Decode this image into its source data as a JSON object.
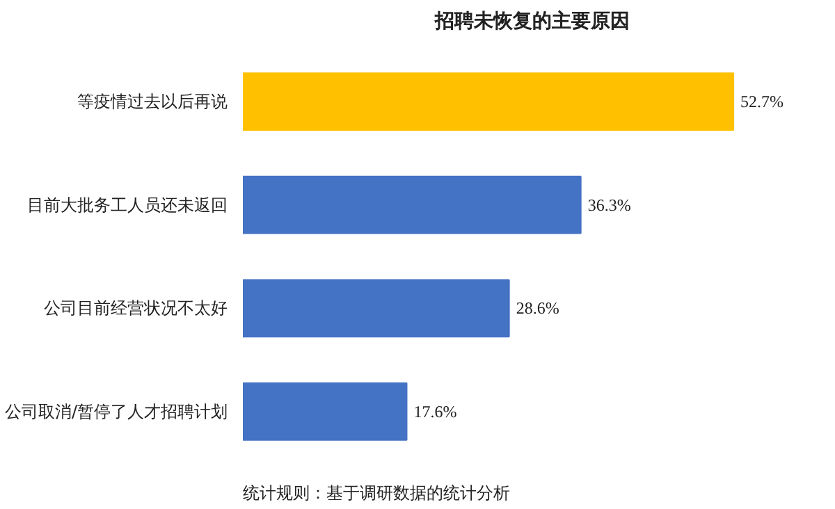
{
  "chart_data": {
    "type": "bar",
    "orientation": "horizontal",
    "title": "招聘未恢复的主要原因",
    "categories": [
      "等疫情过去以后再说",
      "目前大批务工人员还未返回",
      "公司目前经营状况不太好",
      "公司取消/暂停了人才招聘计划"
    ],
    "values": [
      52.7,
      36.3,
      28.6,
      17.6
    ],
    "colors": [
      "#ffc000",
      "#4472c4",
      "#4472c4",
      "#4472c4"
    ],
    "value_labels": [
      "52.7%",
      "36.3%",
      "28.6%",
      "17.6%"
    ],
    "annotations": [
      "统计规则：基于调研数据的统计分析"
    ],
    "grid": false
  }
}
